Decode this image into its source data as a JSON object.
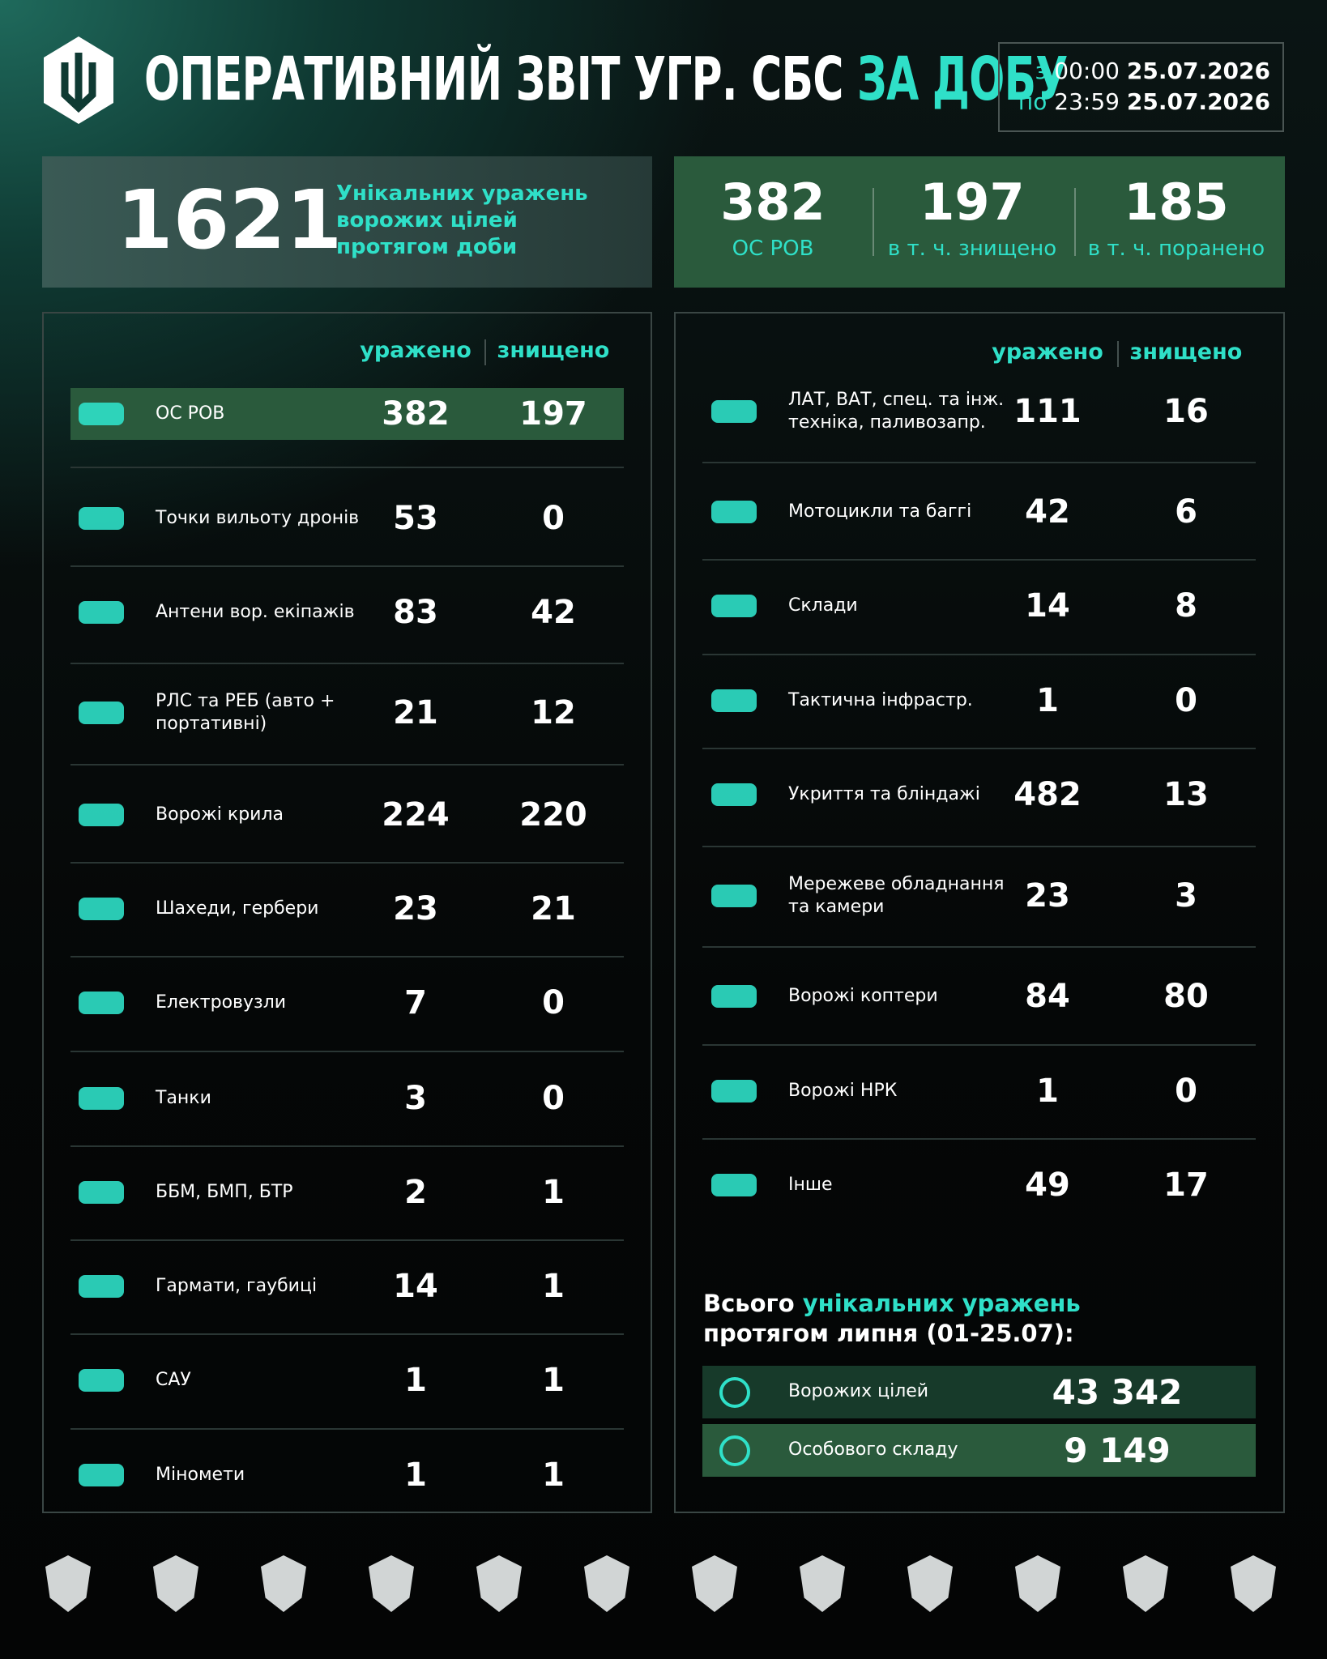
{
  "header": {
    "title": "ОПЕРАТИВНИЙ ЗВІТ УГР. СБС",
    "title_highlight": "ЗА ДОБУ",
    "period": [
      {
        "prefix": "з",
        "time": "00:00",
        "date": "25.07.2026"
      },
      {
        "prefix": "по",
        "time": "23:59",
        "date": "25.07.2026"
      }
    ]
  },
  "summary": {
    "total": 1621,
    "total_label": [
      "Унікальних уражень",
      "ворожих цілей",
      "протягом доби"
    ],
    "stats": [
      {
        "value": 382,
        "label": "ОС РОВ"
      },
      {
        "value": 197,
        "label": "в т. ч. знищено"
      },
      {
        "value": 185,
        "label": "в т. ч. поранено"
      }
    ]
  },
  "left_table": {
    "columns": [
      "уражено",
      "знищено"
    ],
    "rows": [
      {
        "label": [
          "ОС РОВ"
        ],
        "hit": 382,
        "destroyed": 197
      },
      {
        "label": [
          "Точки вильоту дронів"
        ],
        "hit": 53,
        "destroyed": 0
      },
      {
        "label": [
          "Антени вор. екіпажів"
        ],
        "hit": 83,
        "destroyed": 42
      },
      {
        "label": [
          "РЛС та РЕБ (авто +",
          "портативні)"
        ],
        "hit": 21,
        "destroyed": 12
      },
      {
        "label": [
          "Ворожі крила"
        ],
        "hit": 224,
        "destroyed": 220
      },
      {
        "label": [
          "Шахеди, гербери"
        ],
        "hit": 23,
        "destroyed": 21
      },
      {
        "label": [
          "Електровузли"
        ],
        "hit": 7,
        "destroyed": 0
      },
      {
        "label": [
          "Танки"
        ],
        "hit": 3,
        "destroyed": 0
      },
      {
        "label": [
          "ББМ, БМП, БТР"
        ],
        "hit": 2,
        "destroyed": 1
      },
      {
        "label": [
          "Гармати, гаубиці"
        ],
        "hit": 14,
        "destroyed": 1
      },
      {
        "label": [
          "САУ"
        ],
        "hit": 1,
        "destroyed": 1
      },
      {
        "label": [
          "Міномети"
        ],
        "hit": 1,
        "destroyed": 1
      }
    ]
  },
  "right_table": {
    "columns": [
      "уражено",
      "знищено"
    ],
    "rows": [
      {
        "label": [
          "ЛАТ, ВАТ, спец. та інж.",
          "техніка, паливозапр."
        ],
        "hit": 111,
        "destroyed": 16
      },
      {
        "label": [
          "Мотоцикли та баггі"
        ],
        "hit": 42,
        "destroyed": 6
      },
      {
        "label": [
          "Склади"
        ],
        "hit": 14,
        "destroyed": 8
      },
      {
        "label": [
          "Тактична інфрастр."
        ],
        "hit": 1,
        "destroyed": 0
      },
      {
        "label": [
          "Укриття та бліндажі"
        ],
        "hit": 482,
        "destroyed": 13
      },
      {
        "label": [
          "Мережеве обладнання",
          "та камери"
        ],
        "hit": 23,
        "destroyed": 3
      },
      {
        "label": [
          "Ворожі коптери"
        ],
        "hit": 84,
        "destroyed": 80
      },
      {
        "label": [
          "Ворожі НРК"
        ],
        "hit": 1,
        "destroyed": 0
      },
      {
        "label": [
          "Інше"
        ],
        "hit": 49,
        "destroyed": 17
      }
    ]
  },
  "month_total": {
    "heading_start": "Всього",
    "heading_highlight": "унікальних уражень",
    "heading_end": "протягом липня (01-25.07):",
    "rows": [
      {
        "label": "Ворожих цілей",
        "value": "43 342"
      },
      {
        "label": "Особового складу",
        "value": "9 149"
      }
    ]
  }
}
